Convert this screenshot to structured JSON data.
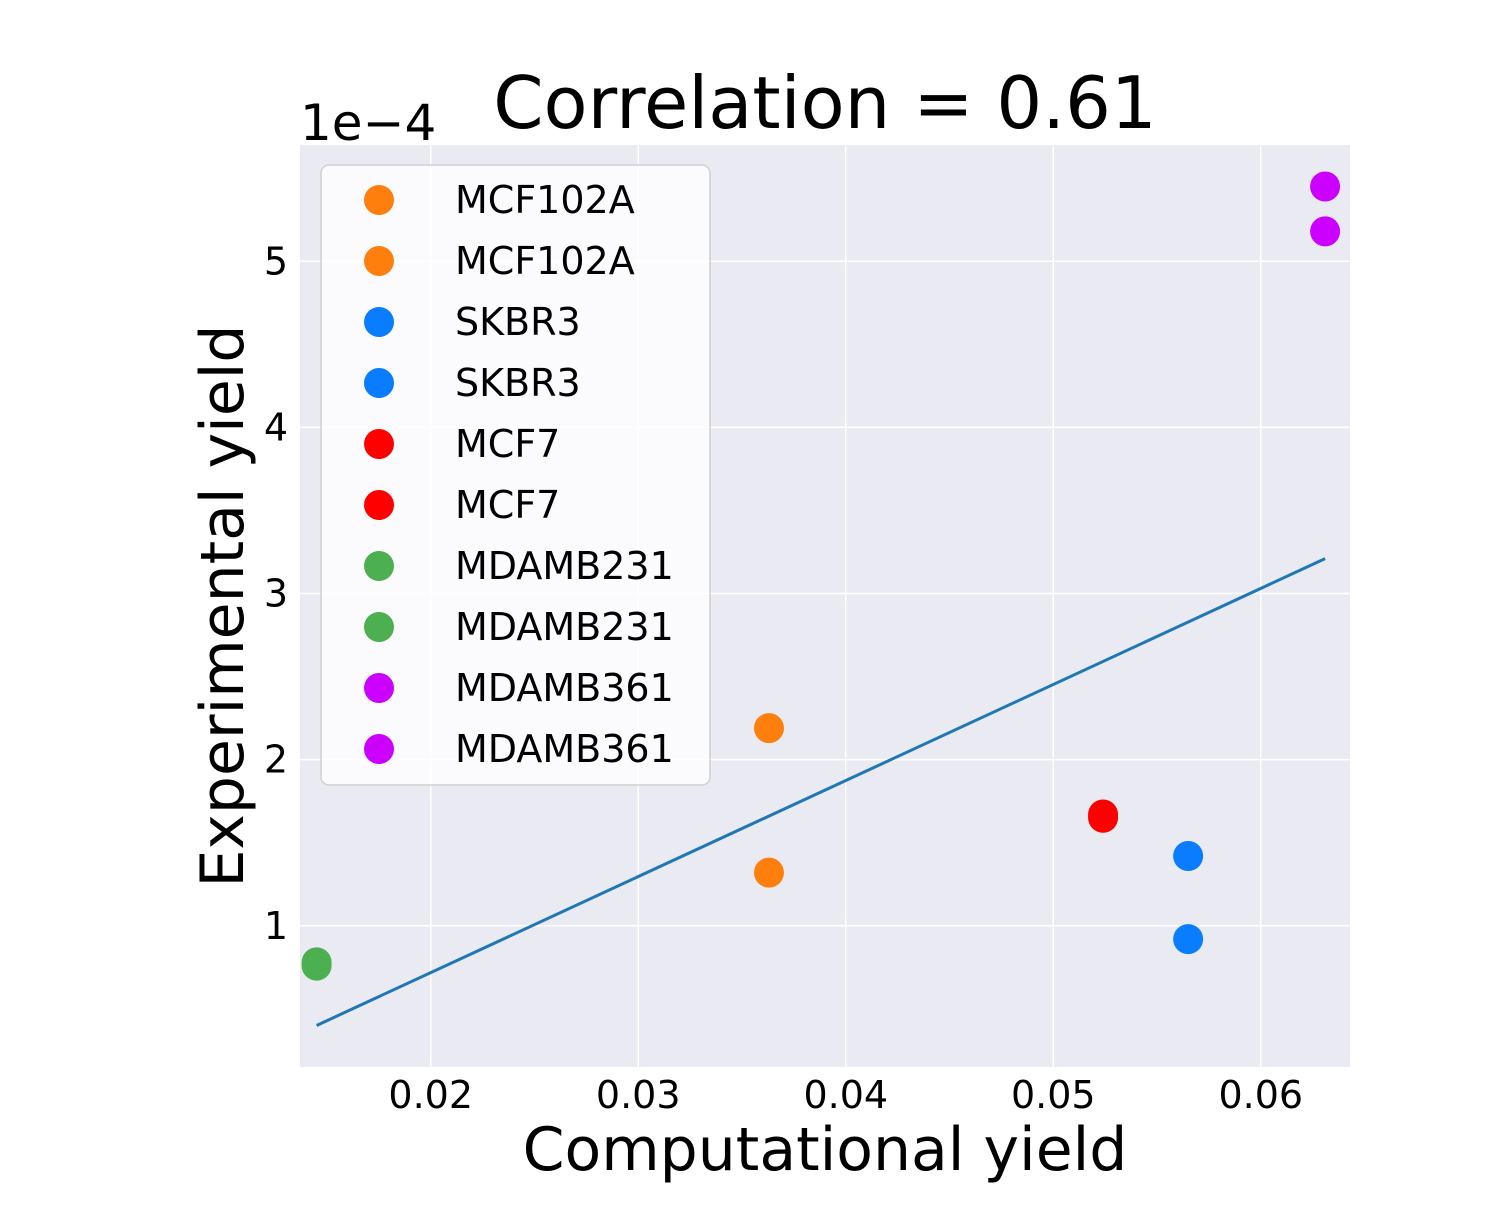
{
  "chart_data": {
    "type": "scatter",
    "title": "Correlation = 0.61",
    "xlabel": "Computational yield",
    "ylabel": "Experimental yield",
    "y_offset_label": "1e−4",
    "xlim": [
      0.0137,
      0.0643
    ],
    "ylim": [
      0.15,
      5.7
    ],
    "y_scale_multiplier": 0.0001,
    "xticks": [
      {
        "value": 0.02,
        "label": "0.02"
      },
      {
        "value": 0.03,
        "label": "0.03"
      },
      {
        "value": 0.04,
        "label": "0.04"
      },
      {
        "value": 0.05,
        "label": "0.05"
      },
      {
        "value": 0.06,
        "label": "0.06"
      }
    ],
    "yticks": [
      {
        "value": 1,
        "label": "1"
      },
      {
        "value": 2,
        "label": "2"
      },
      {
        "value": 3,
        "label": "3"
      },
      {
        "value": 4,
        "label": "4"
      },
      {
        "value": 5,
        "label": "5"
      }
    ],
    "grid": true,
    "background": "#eaeaf2",
    "legend_position": "upper-left",
    "series": [
      {
        "name": "MCF102A",
        "color": "#ff7f0e",
        "points": [
          {
            "x": 0.0363,
            "y": 2.19
          }
        ]
      },
      {
        "name": "MCF102A",
        "color": "#ff7f0e",
        "points": [
          {
            "x": 0.0363,
            "y": 1.32
          }
        ]
      },
      {
        "name": "SKBR3",
        "color": "#0a7cff",
        "points": [
          {
            "x": 0.0565,
            "y": 1.42
          }
        ]
      },
      {
        "name": "SKBR3",
        "color": "#0a7cff",
        "points": [
          {
            "x": 0.0565,
            "y": 0.92
          }
        ]
      },
      {
        "name": "MCF7",
        "color": "#ff0000",
        "points": [
          {
            "x": 0.0524,
            "y": 1.67
          }
        ]
      },
      {
        "name": "MCF7",
        "color": "#ff0000",
        "points": [
          {
            "x": 0.0524,
            "y": 1.65
          }
        ]
      },
      {
        "name": "MDAMB231",
        "color": "#4caf50",
        "points": [
          {
            "x": 0.0145,
            "y": 0.78
          }
        ]
      },
      {
        "name": "MDAMB231",
        "color": "#4caf50",
        "points": [
          {
            "x": 0.0145,
            "y": 0.76
          }
        ]
      },
      {
        "name": "MDAMB361",
        "color": "#cc00ff",
        "points": [
          {
            "x": 0.0631,
            "y": 5.45
          }
        ]
      },
      {
        "name": "MDAMB361",
        "color": "#cc00ff",
        "points": [
          {
            "x": 0.0631,
            "y": 5.18
          }
        ]
      }
    ],
    "fit_line": {
      "color": "#1f77b4",
      "x": [
        0.0145,
        0.0631
      ],
      "y": [
        0.4,
        3.21
      ]
    }
  }
}
